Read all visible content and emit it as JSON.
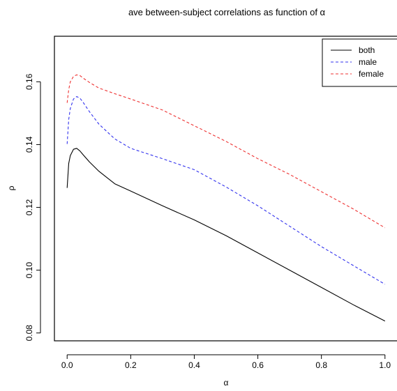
{
  "chart_data": {
    "type": "line",
    "title": "ave between-subject correlations as function of α",
    "xlabel": "α",
    "ylabel": "ρ",
    "xlim": [
      -0.04,
      1.04
    ],
    "ylim": [
      0.0775,
      0.1745
    ],
    "xticks": [
      "0.0",
      "0.2",
      "0.4",
      "0.6",
      "0.8",
      "1.0"
    ],
    "yticks": [
      "0.08",
      "0.10",
      "0.12",
      "0.14",
      "0.16"
    ],
    "grid": false,
    "legend_position": "top-right",
    "x": [
      0.0,
      0.005,
      0.01,
      0.02,
      0.03,
      0.04,
      0.05,
      0.07,
      0.1,
      0.15,
      0.2,
      0.3,
      0.4,
      0.5,
      0.6,
      0.7,
      0.8,
      0.9,
      1.0
    ],
    "series": [
      {
        "name": "both",
        "color": "#000000",
        "dash": "solid",
        "values": [
          0.1262,
          0.134,
          0.1365,
          0.1385,
          0.1388,
          0.138,
          0.1368,
          0.1345,
          0.1315,
          0.1275,
          0.1252,
          0.1205,
          0.116,
          0.111,
          0.1055,
          0.1,
          0.0945,
          0.089,
          0.0838
        ]
      },
      {
        "name": "male",
        "color": "#3333ee",
        "dash": "dashed",
        "values": [
          0.1402,
          0.148,
          0.1515,
          0.1545,
          0.1553,
          0.1548,
          0.1535,
          0.1505,
          0.1465,
          0.1418,
          0.1388,
          0.1355,
          0.132,
          0.1265,
          0.1205,
          0.114,
          0.1075,
          0.1015,
          0.0955
        ]
      },
      {
        "name": "female",
        "color": "#ee3333",
        "dash": "dashed",
        "values": [
          0.1533,
          0.1575,
          0.16,
          0.1617,
          0.1622,
          0.162,
          0.1612,
          0.1598,
          0.158,
          0.1562,
          0.1545,
          0.151,
          0.146,
          0.141,
          0.1355,
          0.1305,
          0.125,
          0.1195,
          0.1135
        ]
      }
    ]
  }
}
